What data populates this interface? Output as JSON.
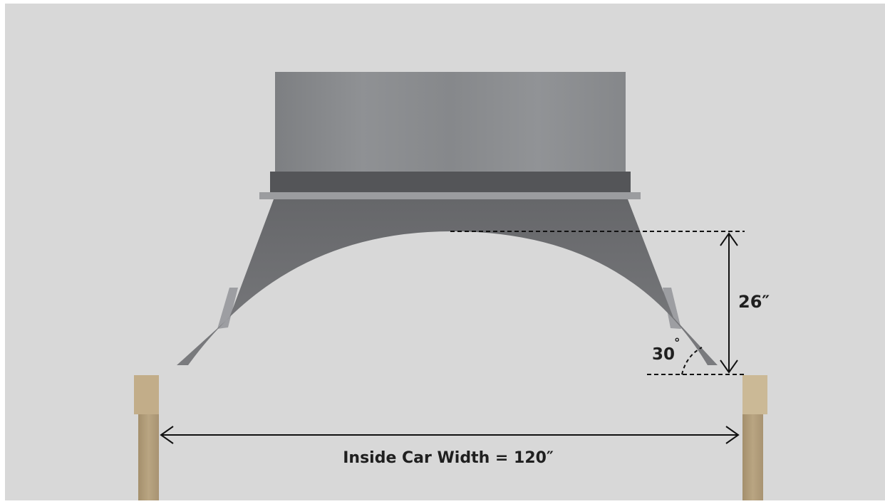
{
  "diagram": {
    "height_label": "26″",
    "angle_label": "30",
    "angle_unit_symbol": "°",
    "width_label": "Inside Car Width = 120″",
    "colors": {
      "background": "#d8d8d8",
      "border": "#ffffff",
      "chute_upper": "#8a8c8f",
      "chute_band": "#545558",
      "chute_flange": "#9b9c9f",
      "chute_skirt": "#6d6e71",
      "chute_lip": "#9d9ea2",
      "wood_post": "#b29d79",
      "wood_post_light": "#c8b592",
      "dimension_line": "#111111"
    },
    "icons": [
      "chute-assembly",
      "wooden-post-left",
      "wooden-post-right",
      "height-dimension-arrow",
      "width-dimension-arrow",
      "angle-arc"
    ]
  }
}
